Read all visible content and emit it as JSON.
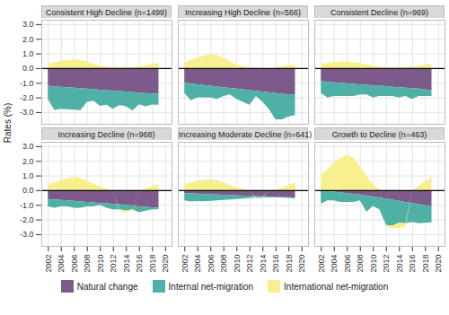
{
  "chart_data": {
    "type": "area",
    "stacked": true,
    "grid": true,
    "legend": "bottom",
    "y_label": "Rates (%)",
    "x": [
      2002,
      2003,
      2004,
      2005,
      2006,
      2007,
      2008,
      2009,
      2010,
      2011,
      2012,
      2013,
      2014,
      2015,
      2016,
      2017,
      2018,
      2019
    ],
    "xlim": [
      2001,
      2021
    ],
    "xticks": [
      2002,
      2004,
      2006,
      2008,
      2010,
      2012,
      2014,
      2016,
      2018,
      2020
    ],
    "ylim": [
      -3.8,
      3.3
    ],
    "yticks": [
      {
        "value": -3,
        "label": "-3.0"
      },
      {
        "value": -2,
        "label": "-2.0"
      },
      {
        "value": -1,
        "label": "-1.0"
      },
      {
        "value": 0,
        "label": "0.0"
      },
      {
        "value": 1,
        "label": "1.0"
      },
      {
        "value": 2,
        "label": "2.0"
      },
      {
        "value": 3,
        "label": "3.0"
      }
    ],
    "panels": [
      {
        "title": "Consistent High Decline (n=1499)",
        "series": [
          {
            "name": "Natural change",
            "color": "#7d5a8c",
            "values": [
              -1.2,
              -1.25,
              -1.28,
              -1.3,
              -1.33,
              -1.36,
              -1.4,
              -1.43,
              -1.47,
              -1.5,
              -1.53,
              -1.57,
              -1.6,
              -1.63,
              -1.67,
              -1.7,
              -1.73,
              -1.75
            ]
          },
          {
            "name": "Internal net-migration",
            "color": "#4fb0a5",
            "values": [
              -0.9,
              -1.6,
              -1.5,
              -1.5,
              -1.5,
              -1.5,
              -0.9,
              -0.8,
              -1.1,
              -1.0,
              -1.25,
              -0.95,
              -1.0,
              -1.25,
              -0.8,
              -0.9,
              -0.75,
              -0.75
            ]
          },
          {
            "name": "International net-migration",
            "color": "#f8ef8e",
            "values": [
              0.3,
              0.4,
              0.5,
              0.55,
              0.6,
              0.55,
              0.45,
              0.3,
              0.15,
              0.1,
              0.05,
              0.05,
              0.05,
              0.05,
              0.1,
              0.2,
              0.3,
              0.35
            ]
          }
        ]
      },
      {
        "title": "Increasing High Decline (n=566)",
        "series": [
          {
            "name": "Natural change",
            "color": "#7d5a8c",
            "values": [
              -1.0,
              -1.05,
              -1.1,
              -1.15,
              -1.2,
              -1.25,
              -1.3,
              -1.35,
              -1.4,
              -1.45,
              -1.5,
              -1.55,
              -1.6,
              -1.65,
              -1.7,
              -1.75,
              -1.78,
              -1.8
            ]
          },
          {
            "name": "Internal net-migration",
            "color": "#4fb0a5",
            "values": [
              -0.7,
              -1.15,
              -0.9,
              -0.85,
              -0.8,
              -0.85,
              -0.6,
              -0.45,
              -0.7,
              -0.85,
              -1.0,
              -0.35,
              -0.7,
              -1.15,
              -1.8,
              -1.75,
              -1.52,
              -1.4
            ]
          },
          {
            "name": "International net-migration",
            "color": "#f8ef8e",
            "values": [
              0.4,
              0.55,
              0.7,
              0.85,
              0.95,
              0.9,
              0.7,
              0.45,
              0.25,
              0.1,
              0.05,
              0.02,
              0.02,
              0.0,
              0.05,
              0.1,
              0.2,
              0.25
            ]
          }
        ]
      },
      {
        "title": "Consistent Decline (n=969)",
        "series": [
          {
            "name": "Natural change",
            "color": "#7d5a8c",
            "values": [
              -0.9,
              -0.93,
              -0.97,
              -1.0,
              -1.03,
              -1.07,
              -1.1,
              -1.13,
              -1.17,
              -1.2,
              -1.23,
              -1.27,
              -1.3,
              -1.33,
              -1.37,
              -1.4,
              -1.45,
              -1.5
            ]
          },
          {
            "name": "Internal net-migration",
            "color": "#4fb0a5",
            "values": [
              -0.8,
              -1.07,
              -0.93,
              -0.9,
              -0.87,
              -0.83,
              -0.7,
              -0.67,
              -0.83,
              -0.7,
              -0.67,
              -0.63,
              -0.7,
              -0.57,
              -0.73,
              -0.5,
              -0.45,
              -0.4
            ]
          },
          {
            "name": "International net-migration",
            "color": "#f8ef8e",
            "values": [
              0.3,
              0.35,
              0.4,
              0.45,
              0.45,
              0.4,
              0.35,
              0.25,
              0.15,
              0.1,
              0.05,
              0.05,
              0.05,
              0.05,
              0.1,
              0.15,
              0.25,
              0.3
            ]
          }
        ]
      },
      {
        "title": "Increasing Decline (n=968)",
        "series": [
          {
            "name": "Natural change",
            "color": "#7d5a8c",
            "values": [
              -0.6,
              -0.63,
              -0.67,
              -0.7,
              -0.73,
              -0.77,
              -0.8,
              -0.83,
              -0.87,
              -0.9,
              -0.93,
              -0.97,
              -1.0,
              -1.05,
              -1.1,
              -1.13,
              -1.17,
              -1.2
            ]
          },
          {
            "name": "Internal net-migration",
            "color": "#4fb0a5",
            "values": [
              -0.5,
              -0.57,
              -0.43,
              -0.4,
              -0.47,
              -0.43,
              -0.3,
              -0.27,
              -0.13,
              -0.3,
              -0.37,
              -0.33,
              -0.4,
              -0.25,
              -0.4,
              -0.27,
              -0.13,
              -0.1
            ]
          },
          {
            "name": "International net-migration",
            "color": "#f8ef8e",
            "values": [
              0.4,
              0.55,
              0.7,
              0.8,
              0.9,
              0.85,
              0.65,
              0.45,
              0.25,
              0.1,
              0.0,
              -0.1,
              -0.15,
              -0.05,
              0.0,
              0.1,
              0.25,
              0.4
            ]
          }
        ]
      },
      {
        "title": "Increasing Moderate Decline (n=641)",
        "series": [
          {
            "name": "Natural change",
            "color": "#7d5a8c",
            "values": [
              -0.2,
              -0.22,
              -0.24,
              -0.26,
              -0.28,
              -0.3,
              -0.31,
              -0.33,
              -0.35,
              -0.37,
              -0.38,
              -0.4,
              -0.42,
              -0.43,
              -0.45,
              -0.46,
              -0.48,
              -0.5
            ]
          },
          {
            "name": "Internal net-migration",
            "color": "#4fb0a5",
            "values": [
              -0.5,
              -0.55,
              -0.5,
              -0.5,
              -0.45,
              -0.4,
              -0.35,
              -0.3,
              -0.25,
              -0.2,
              -0.15,
              -0.1,
              -0.08,
              -0.05,
              -0.05,
              -0.05,
              -0.05,
              -0.05
            ]
          },
          {
            "name": "International net-migration",
            "color": "#f8ef8e",
            "values": [
              0.4,
              0.55,
              0.65,
              0.7,
              0.75,
              0.7,
              0.55,
              0.35,
              0.2,
              0.1,
              0.0,
              -0.05,
              -0.05,
              0.0,
              0.05,
              0.15,
              0.35,
              0.55
            ]
          }
        ]
      },
      {
        "title": "Growth to Decline (n=463)",
        "series": [
          {
            "name": "Natural change",
            "color": "#7d5a8c",
            "values": [
              -0.02,
              -0.05,
              -0.1,
              -0.15,
              -0.2,
              -0.25,
              -0.3,
              -0.37,
              -0.43,
              -0.5,
              -0.57,
              -0.65,
              -0.72,
              -0.8,
              -0.87,
              -0.95,
              -1.02,
              -1.1
            ]
          },
          {
            "name": "Internal net-migration",
            "color": "#4fb0a5",
            "values": [
              -0.9,
              -0.65,
              -0.6,
              -0.65,
              -0.6,
              -0.55,
              -0.4,
              -1.1,
              -0.65,
              -0.8,
              -1.8,
              -1.75,
              -1.5,
              -1.45,
              -1.3,
              -1.3,
              -1.2,
              -1.1
            ]
          },
          {
            "name": "International net-migration",
            "color": "#f8ef8e",
            "values": [
              1.1,
              1.4,
              1.9,
              2.2,
              2.4,
              2.2,
              1.6,
              1.0,
              0.4,
              0.05,
              -0.1,
              -0.2,
              -0.35,
              -0.25,
              0.0,
              0.3,
              0.6,
              0.9
            ]
          }
        ]
      }
    ]
  }
}
